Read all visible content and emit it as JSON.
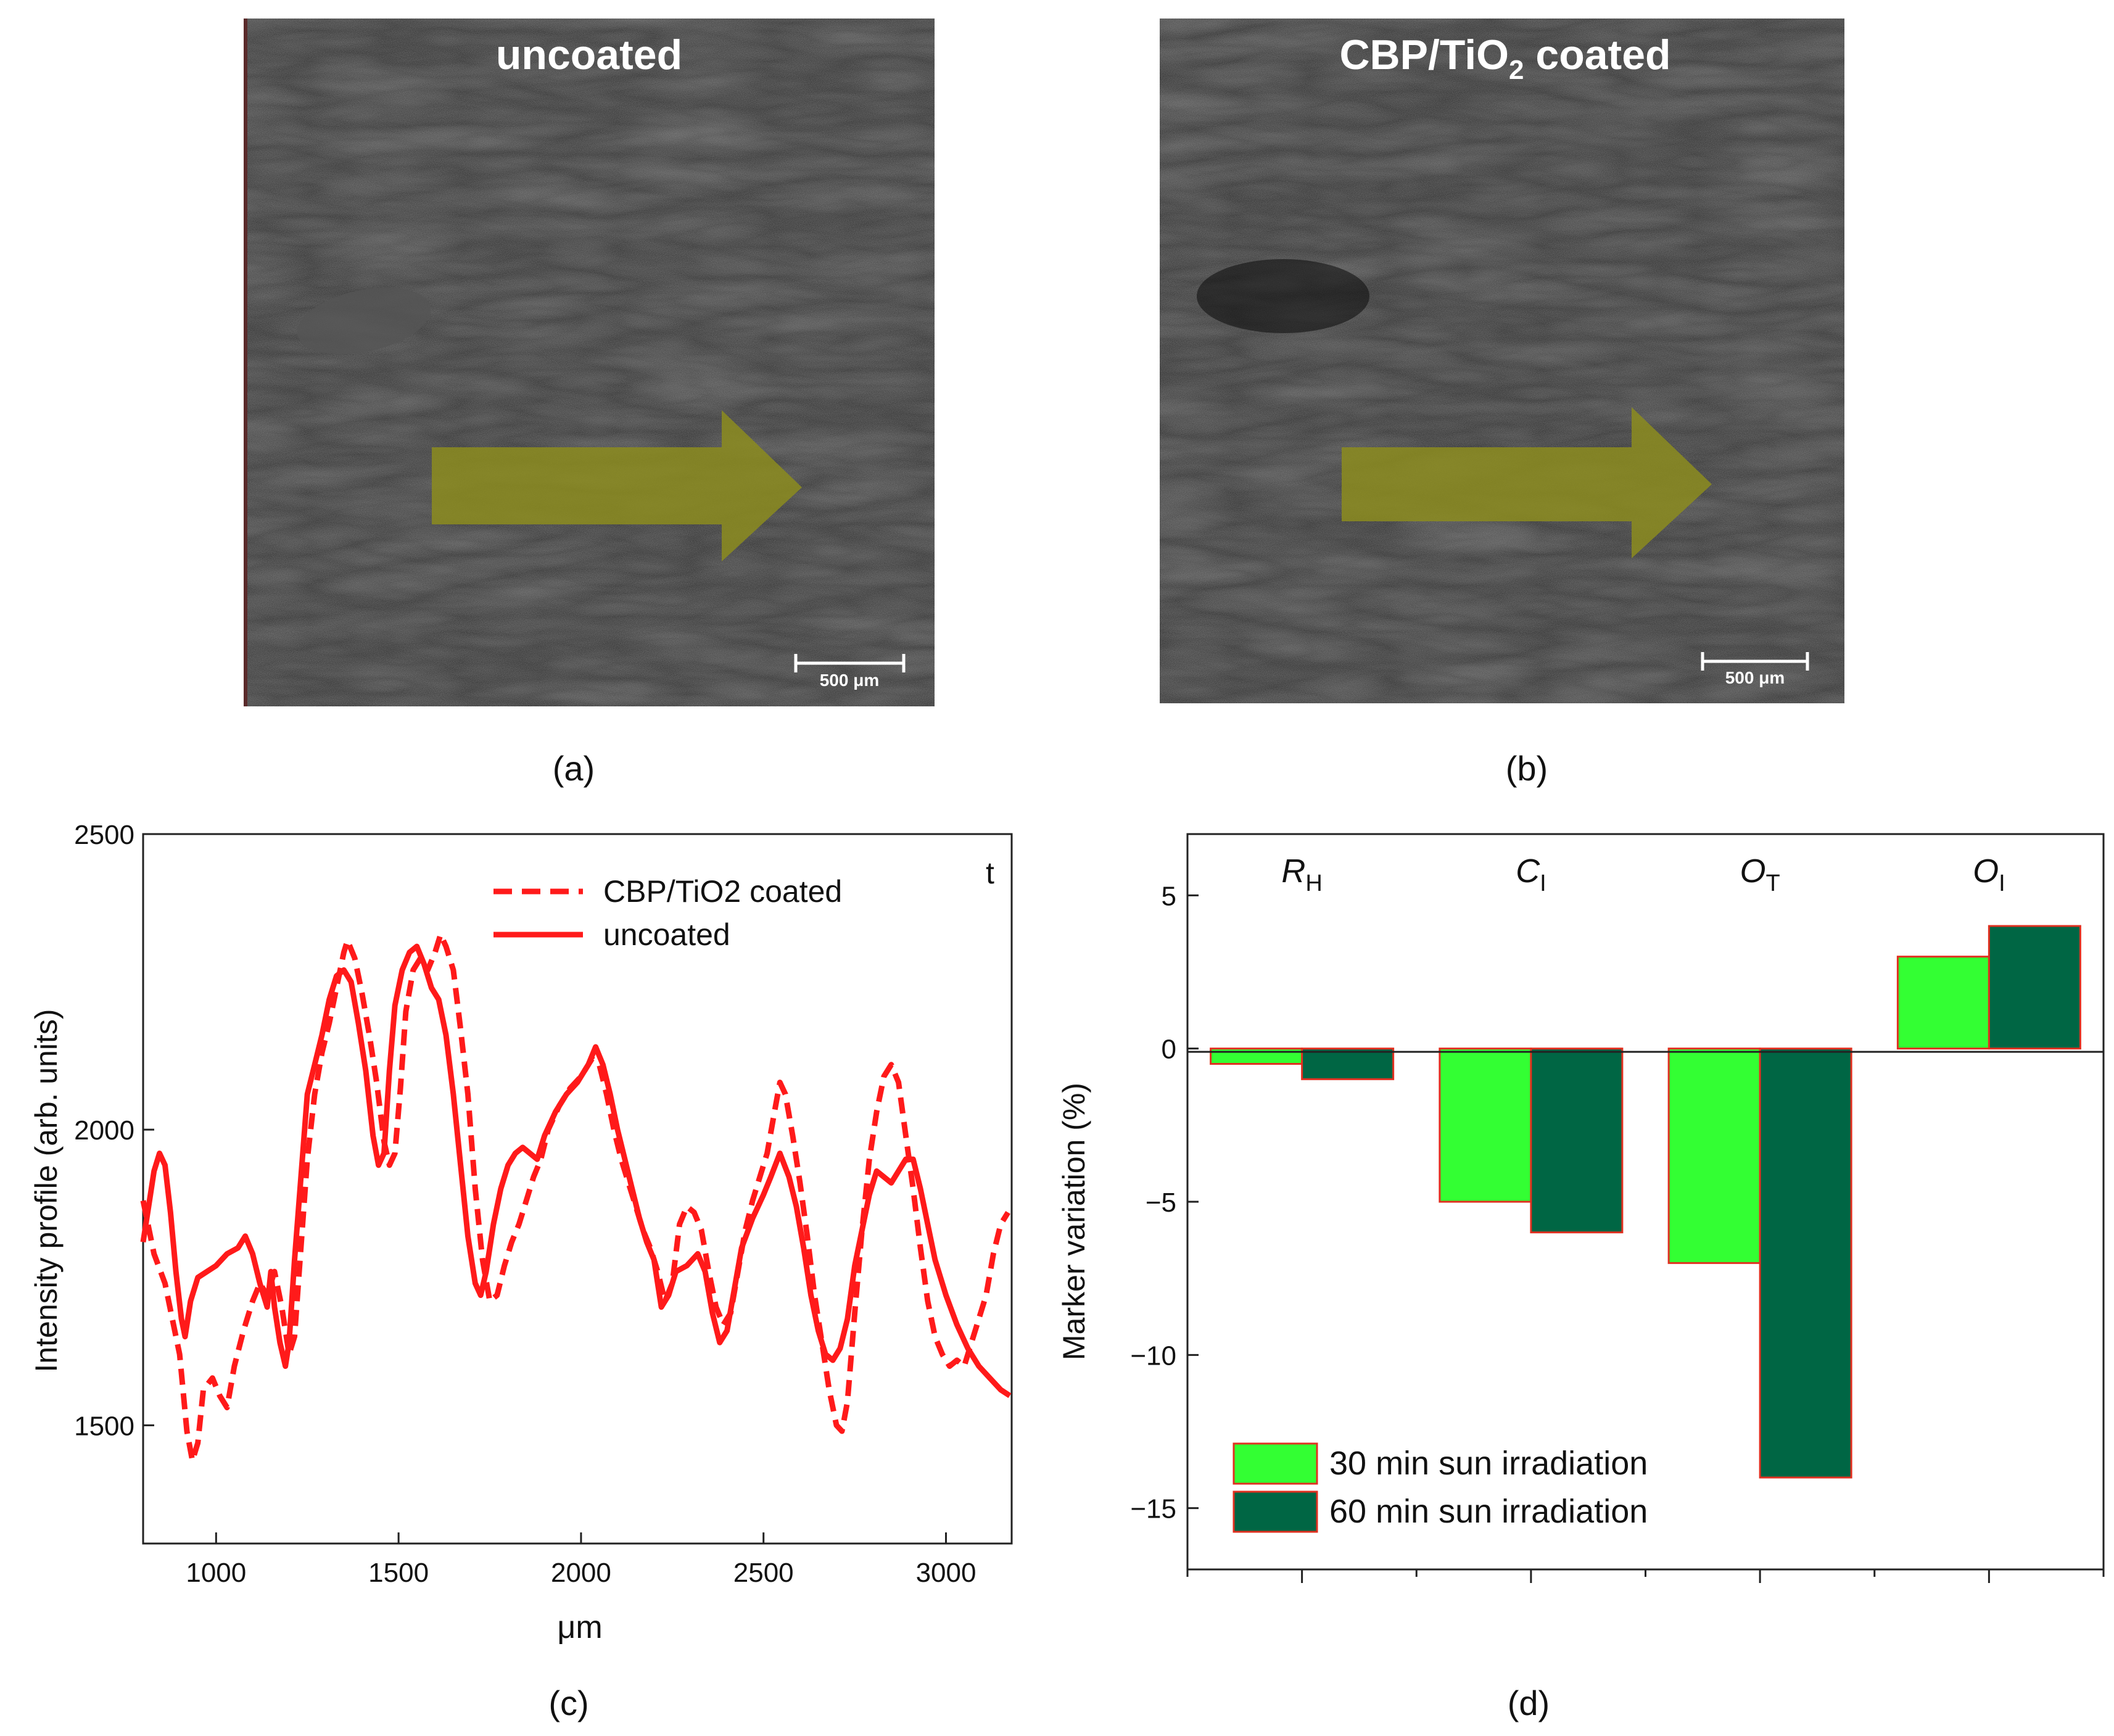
{
  "panels": {
    "a": {
      "caption": "(a)",
      "title": "uncoated",
      "scale_bar": "500 μm"
    },
    "b": {
      "caption": "(b)",
      "title_main": "CBP/TiO",
      "title_sub": "2",
      "title_tail": " coated",
      "scale_bar": "500 μm"
    },
    "c": {
      "caption": "(c)",
      "corner_label": "t"
    },
    "d": {
      "caption": "(d)"
    }
  },
  "colors": {
    "profile_line": "#ff1a1a",
    "bar_30": "#33ff33",
    "bar_60": "#006644",
    "bar_edge": "#e03020",
    "arrow": "#8c8c1e"
  },
  "chart_data": [
    {
      "id": "c",
      "type": "line",
      "xlabel": "μm",
      "ylabel": "Intensity profile (arb. units)",
      "xlim": [
        800,
        3180
      ],
      "ylim": [
        1300,
        2500
      ],
      "xticks": [
        1000,
        1500,
        2000,
        2500,
        3000
      ],
      "yticks": [
        1500,
        2000,
        2500
      ],
      "legend": "top-right",
      "series": [
        {
          "name": "CBP/TiO2 coated",
          "style": "dashed",
          "points": [
            [
              800,
              1880
            ],
            [
              830,
              1790
            ],
            [
              860,
              1740
            ],
            [
              880,
              1680
            ],
            [
              900,
              1620
            ],
            [
              920,
              1490
            ],
            [
              935,
              1440
            ],
            [
              950,
              1470
            ],
            [
              965,
              1560
            ],
            [
              990,
              1580
            ],
            [
              1010,
              1550
            ],
            [
              1030,
              1530
            ],
            [
              1050,
              1600
            ],
            [
              1075,
              1660
            ],
            [
              1100,
              1710
            ],
            [
              1120,
              1740
            ],
            [
              1140,
              1720
            ],
            [
              1160,
              1760
            ],
            [
              1180,
              1700
            ],
            [
              1200,
              1620
            ],
            [
              1215,
              1650
            ],
            [
              1230,
              1780
            ],
            [
              1250,
              1950
            ],
            [
              1270,
              2060
            ],
            [
              1290,
              2130
            ],
            [
              1310,
              2180
            ],
            [
              1330,
              2240
            ],
            [
              1350,
              2300
            ],
            [
              1360,
              2320
            ],
            [
              1380,
              2290
            ],
            [
              1400,
              2230
            ],
            [
              1420,
              2160
            ],
            [
              1440,
              2080
            ],
            [
              1460,
              1980
            ],
            [
              1475,
              1940
            ],
            [
              1490,
              1960
            ],
            [
              1505,
              2070
            ],
            [
              1520,
              2200
            ],
            [
              1540,
              2270
            ],
            [
              1560,
              2290
            ],
            [
              1580,
              2270
            ],
            [
              1600,
              2300
            ],
            [
              1615,
              2330
            ],
            [
              1630,
              2310
            ],
            [
              1650,
              2270
            ],
            [
              1670,
              2170
            ],
            [
              1690,
              2060
            ],
            [
              1710,
              1900
            ],
            [
              1730,
              1780
            ],
            [
              1750,
              1710
            ],
            [
              1770,
              1720
            ],
            [
              1790,
              1770
            ],
            [
              1810,
              1810
            ],
            [
              1830,
              1840
            ],
            [
              1850,
              1880
            ],
            [
              1870,
              1920
            ],
            [
              1890,
              1950
            ],
            [
              1910,
              2000
            ],
            [
              1940,
              2040
            ],
            [
              1970,
              2070
            ],
            [
              2000,
              2090
            ],
            [
              2030,
              2120
            ],
            [
              2050,
              2110
            ],
            [
              2070,
              2060
            ],
            [
              2090,
              2000
            ],
            [
              2110,
              1950
            ],
            [
              2130,
              1910
            ],
            [
              2150,
              1870
            ],
            [
              2170,
              1830
            ],
            [
              2190,
              1800
            ],
            [
              2210,
              1760
            ],
            [
              2230,
              1710
            ],
            [
              2250,
              1740
            ],
            [
              2270,
              1840
            ],
            [
              2290,
              1870
            ],
            [
              2310,
              1860
            ],
            [
              2330,
              1830
            ],
            [
              2350,
              1760
            ],
            [
              2370,
              1700
            ],
            [
              2390,
              1670
            ],
            [
              2410,
              1690
            ],
            [
              2430,
              1760
            ],
            [
              2450,
              1830
            ],
            [
              2470,
              1880
            ],
            [
              2490,
              1920
            ],
            [
              2510,
              1960
            ],
            [
              2530,
              2030
            ],
            [
              2545,
              2080
            ],
            [
              2560,
              2060
            ],
            [
              2580,
              1990
            ],
            [
              2600,
              1910
            ],
            [
              2620,
              1820
            ],
            [
              2640,
              1720
            ],
            [
              2660,
              1640
            ],
            [
              2680,
              1560
            ],
            [
              2700,
              1500
            ],
            [
              2715,
              1490
            ],
            [
              2730,
              1540
            ],
            [
              2750,
              1690
            ],
            [
              2770,
              1830
            ],
            [
              2790,
              1950
            ],
            [
              2810,
              2030
            ],
            [
              2830,
              2090
            ],
            [
              2850,
              2110
            ],
            [
              2870,
              2080
            ],
            [
              2890,
              1990
            ],
            [
              2910,
              1900
            ],
            [
              2930,
              1800
            ],
            [
              2950,
              1710
            ],
            [
              2970,
              1650
            ],
            [
              2990,
              1620
            ],
            [
              3010,
              1600
            ],
            [
              3030,
              1610
            ],
            [
              3050,
              1600
            ],
            [
              3070,
              1640
            ],
            [
              3090,
              1680
            ],
            [
              3110,
              1720
            ],
            [
              3130,
              1790
            ],
            [
              3150,
              1840
            ],
            [
              3170,
              1860
            ]
          ]
        },
        {
          "name": "uncoated",
          "style": "solid",
          "points": [
            [
              800,
              1810
            ],
            [
              815,
              1870
            ],
            [
              830,
              1930
            ],
            [
              845,
              1960
            ],
            [
              860,
              1940
            ],
            [
              875,
              1860
            ],
            [
              890,
              1760
            ],
            [
              905,
              1680
            ],
            [
              915,
              1650
            ],
            [
              930,
              1710
            ],
            [
              950,
              1750
            ],
            [
              975,
              1760
            ],
            [
              1000,
              1770
            ],
            [
              1030,
              1790
            ],
            [
              1060,
              1800
            ],
            [
              1080,
              1820
            ],
            [
              1100,
              1790
            ],
            [
              1120,
              1740
            ],
            [
              1140,
              1700
            ],
            [
              1150,
              1760
            ],
            [
              1160,
              1700
            ],
            [
              1175,
              1640
            ],
            [
              1190,
              1600
            ],
            [
              1200,
              1640
            ],
            [
              1215,
              1780
            ],
            [
              1230,
              1900
            ],
            [
              1250,
              2060
            ],
            [
              1270,
              2110
            ],
            [
              1290,
              2160
            ],
            [
              1310,
              2220
            ],
            [
              1330,
              2260
            ],
            [
              1350,
              2270
            ],
            [
              1370,
              2250
            ],
            [
              1390,
              2180
            ],
            [
              1410,
              2100
            ],
            [
              1430,
              1990
            ],
            [
              1445,
              1940
            ],
            [
              1460,
              1960
            ],
            [
              1475,
              2100
            ],
            [
              1490,
              2210
            ],
            [
              1510,
              2270
            ],
            [
              1530,
              2300
            ],
            [
              1550,
              2310
            ],
            [
              1570,
              2280
            ],
            [
              1590,
              2240
            ],
            [
              1610,
              2220
            ],
            [
              1630,
              2160
            ],
            [
              1650,
              2060
            ],
            [
              1670,
              1940
            ],
            [
              1690,
              1820
            ],
            [
              1710,
              1740
            ],
            [
              1725,
              1720
            ],
            [
              1740,
              1760
            ],
            [
              1760,
              1840
            ],
            [
              1780,
              1900
            ],
            [
              1800,
              1940
            ],
            [
              1820,
              1960
            ],
            [
              1840,
              1970
            ],
            [
              1860,
              1960
            ],
            [
              1880,
              1950
            ],
            [
              1900,
              1990
            ],
            [
              1930,
              2030
            ],
            [
              1960,
              2060
            ],
            [
              1990,
              2080
            ],
            [
              2020,
              2110
            ],
            [
              2040,
              2140
            ],
            [
              2060,
              2110
            ],
            [
              2080,
              2060
            ],
            [
              2100,
              2000
            ],
            [
              2120,
              1950
            ],
            [
              2140,
              1900
            ],
            [
              2160,
              1850
            ],
            [
              2180,
              1810
            ],
            [
              2200,
              1780
            ],
            [
              2220,
              1700
            ],
            [
              2240,
              1720
            ],
            [
              2260,
              1760
            ],
            [
              2290,
              1770
            ],
            [
              2320,
              1790
            ],
            [
              2340,
              1760
            ],
            [
              2360,
              1690
            ],
            [
              2380,
              1640
            ],
            [
              2400,
              1660
            ],
            [
              2420,
              1730
            ],
            [
              2440,
              1800
            ],
            [
              2470,
              1850
            ],
            [
              2500,
              1890
            ],
            [
              2520,
              1920
            ],
            [
              2545,
              1960
            ],
            [
              2570,
              1920
            ],
            [
              2590,
              1870
            ],
            [
              2610,
              1800
            ],
            [
              2630,
              1720
            ],
            [
              2650,
              1660
            ],
            [
              2670,
              1620
            ],
            [
              2690,
              1610
            ],
            [
              2710,
              1630
            ],
            [
              2730,
              1680
            ],
            [
              2750,
              1770
            ],
            [
              2770,
              1830
            ],
            [
              2790,
              1890
            ],
            [
              2810,
              1930
            ],
            [
              2830,
              1920
            ],
            [
              2850,
              1910
            ],
            [
              2870,
              1930
            ],
            [
              2890,
              1950
            ],
            [
              2910,
              1950
            ],
            [
              2930,
              1900
            ],
            [
              2950,
              1840
            ],
            [
              2970,
              1780
            ],
            [
              3000,
              1720
            ],
            [
              3030,
              1670
            ],
            [
              3060,
              1630
            ],
            [
              3090,
              1600
            ],
            [
              3120,
              1580
            ],
            [
              3150,
              1560
            ],
            [
              3175,
              1550
            ]
          ]
        }
      ]
    },
    {
      "id": "d",
      "type": "bar",
      "ylabel": "Marker variation (%)",
      "xlabel": "",
      "ylim": [
        -17,
        7
      ],
      "yticks": [
        5,
        0,
        -5,
        -10,
        -15
      ],
      "ytick_labels": [
        "5",
        "0",
        "−5",
        "−10",
        "−15"
      ],
      "legend": "bottom-left",
      "categories": [
        {
          "main": "R",
          "sub": "H"
        },
        {
          "main": "C",
          "sub": "I"
        },
        {
          "main": "O",
          "sub": "T"
        },
        {
          "main": "O",
          "sub": "I"
        }
      ],
      "series": [
        {
          "name": "30 min sun irradiation",
          "values": [
            -0.5,
            -5,
            -7,
            3
          ]
        },
        {
          "name": "60 min sun irradiation",
          "values": [
            -1,
            -6,
            -14,
            4
          ]
        }
      ]
    }
  ]
}
